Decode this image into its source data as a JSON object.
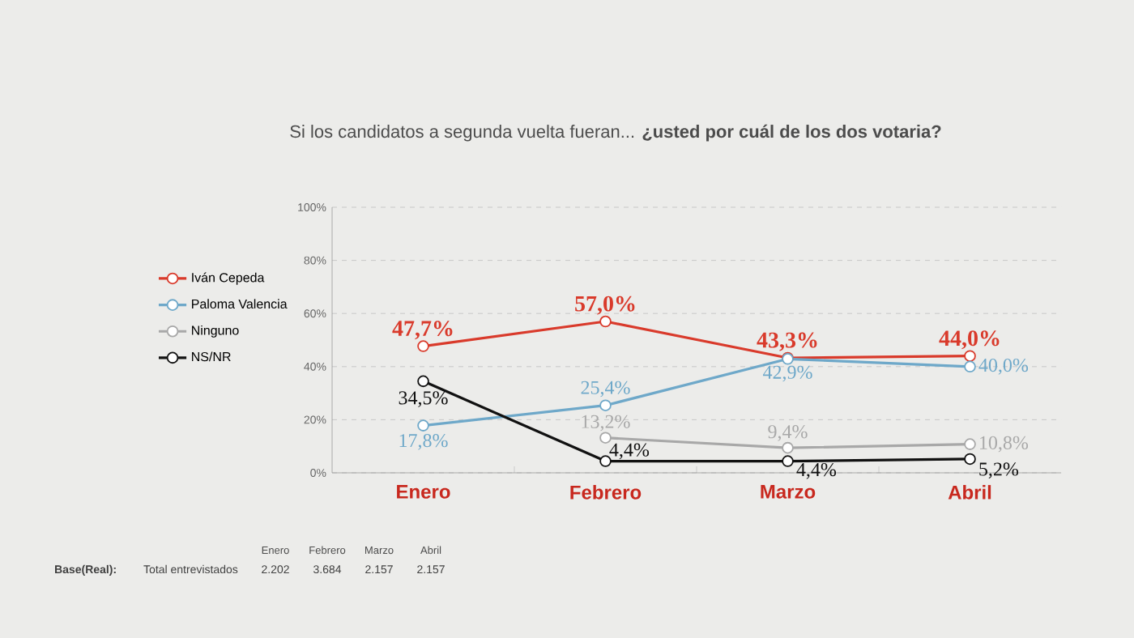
{
  "chart_data": {
    "type": "line",
    "title": "Si los candidatos a segunda vuelta fueran...  **¿usted por cuál de los dos votaria?**",
    "categories": [
      "Enero",
      "Febrero",
      "Marzo",
      "Abril"
    ],
    "series": [
      {
        "name": "Iván Cepeda",
        "color": "#d93a2b",
        "values": [
          47.7,
          57.0,
          43.3,
          44.0
        ],
        "value_labels": [
          "47,7%",
          "57,0%",
          "43,3%",
          "44,0%"
        ]
      },
      {
        "name": "Paloma Valencia",
        "color": "#6ea8c9",
        "values": [
          17.8,
          25.4,
          42.9,
          40.0
        ],
        "value_labels": [
          "17,8%",
          "25,4%",
          "42,9%",
          "40,0%"
        ]
      },
      {
        "name": "Ninguno",
        "color": "#a8a8a8",
        "values": [
          null,
          13.2,
          9.4,
          10.8
        ],
        "value_labels": [
          null,
          "13,2%",
          "9,4%",
          "10,8%"
        ]
      },
      {
        "name": "NS/NR",
        "color": "#111111",
        "values": [
          34.5,
          4.4,
          4.4,
          5.2
        ],
        "value_labels": [
          "34,5%",
          "4,4%",
          "4,4%",
          "5,2%"
        ]
      }
    ],
    "ylim": [
      0,
      100
    ],
    "yticks": [
      {
        "value": 0,
        "label": "0%"
      },
      {
        "value": 20,
        "label": "20%"
      },
      {
        "value": 40,
        "label": "40%"
      },
      {
        "value": 60,
        "label": "60%"
      },
      {
        "value": 80,
        "label": "80%"
      },
      {
        "value": 100,
        "label": "100%"
      }
    ],
    "grid": "y",
    "legend": "left",
    "marker": "circle",
    "line_style": "solid",
    "annotations": [
      "Base(Real):",
      "Total entrevistados",
      "Enero",
      "Febrero",
      "Marzo",
      "Abril",
      "2.202",
      "3.684",
      "2.157",
      "2.157"
    ]
  }
}
